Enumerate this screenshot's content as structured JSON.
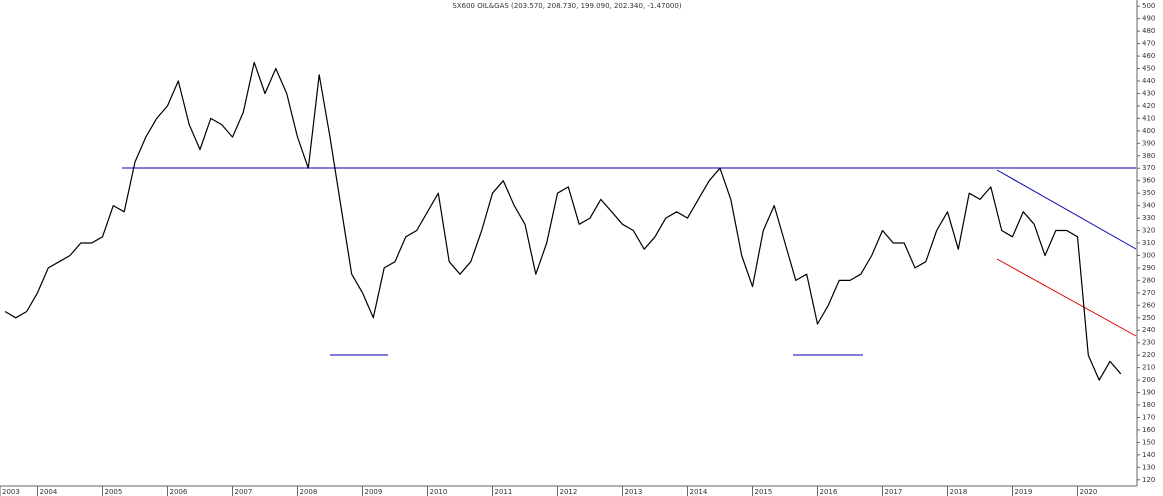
{
  "chart_data": {
    "type": "line",
    "title": "SX600 OIL&GAS (203.570, 208.730, 199.090, 202.340, -1.47000)",
    "categories": [
      "2003",
      null,
      null,
      "2004",
      null,
      null,
      null,
      null,
      null,
      "2005",
      null,
      null,
      null,
      null,
      null,
      "2006",
      null,
      null,
      null,
      null,
      null,
      "2007",
      null,
      null,
      null,
      null,
      null,
      "2008",
      null,
      null,
      null,
      null,
      null,
      "2009",
      null,
      null,
      null,
      null,
      null,
      "2010",
      null,
      null,
      null,
      null,
      null,
      "2011",
      null,
      null,
      null,
      null,
      null,
      "2012",
      null,
      null,
      null,
      null,
      null,
      "2013",
      null,
      null,
      null,
      null,
      null,
      "2014",
      null,
      null,
      null,
      null,
      null,
      "2015",
      null,
      null,
      null,
      null,
      null,
      "2016",
      null,
      null,
      null,
      null,
      null,
      "2017",
      null,
      null,
      null,
      null,
      null,
      "2018",
      null,
      null,
      null,
      null,
      null,
      "2019",
      null,
      null,
      null,
      null,
      null,
      "2020",
      null,
      null,
      null,
      null
    ],
    "values": [
      255,
      250,
      255,
      270,
      290,
      295,
      300,
      310,
      310,
      315,
      340,
      335,
      375,
      395,
      410,
      420,
      440,
      405,
      385,
      410,
      405,
      395,
      415,
      455,
      430,
      450,
      430,
      395,
      370,
      445,
      395,
      340,
      285,
      270,
      250,
      290,
      295,
      315,
      320,
      335,
      350,
      295,
      285,
      295,
      320,
      350,
      360,
      340,
      325,
      285,
      310,
      350,
      355,
      325,
      330,
      345,
      335,
      325,
      320,
      305,
      315,
      330,
      335,
      330,
      345,
      360,
      370,
      345,
      300,
      275,
      320,
      340,
      310,
      280,
      285,
      245,
      260,
      280,
      280,
      285,
      300,
      320,
      310,
      310,
      290,
      295,
      320,
      335,
      305,
      350,
      345,
      355,
      320,
      315,
      335,
      325,
      300,
      320,
      320,
      315,
      220,
      200,
      215,
      205
    ],
    "color": "#000000",
    "ylim": [
      115,
      505
    ],
    "yticks": [
      120,
      130,
      140,
      150,
      160,
      170,
      180,
      190,
      200,
      210,
      220,
      230,
      240,
      250,
      260,
      270,
      280,
      290,
      300,
      310,
      320,
      330,
      340,
      350,
      360,
      370,
      380,
      390,
      400,
      410,
      420,
      430,
      440,
      450,
      460,
      470,
      480,
      490,
      500
    ]
  }
}
